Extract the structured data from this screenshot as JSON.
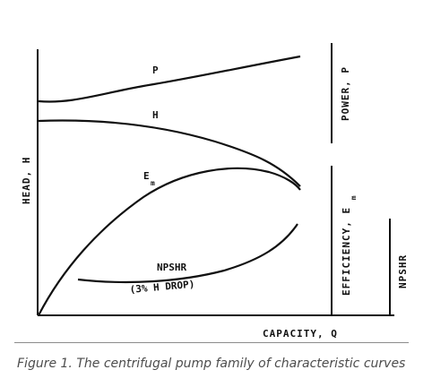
{
  "figure": {
    "caption": "Figure 1. The centrifugal pump family of characteristic curves",
    "axes": {
      "x_label": "CAPACITY, Q",
      "head_label": "HEAD, H",
      "power_label_main": "POWER, P",
      "efficiency_label_main": "EFFICIENCY, E",
      "efficiency_label_sub": "m",
      "npshr_label": "NPSHR"
    },
    "curves": {
      "power": {
        "label": "P"
      },
      "head": {
        "label": "H"
      },
      "efficiency": {
        "label_main": "E",
        "label_sub": "m"
      },
      "npshr": {
        "label": "NPSHR",
        "note": "(3% H DROP)"
      }
    },
    "colors": {
      "ink": "#111111",
      "caption": "#4d4d4d",
      "rule": "#8c8c8c"
    }
  }
}
